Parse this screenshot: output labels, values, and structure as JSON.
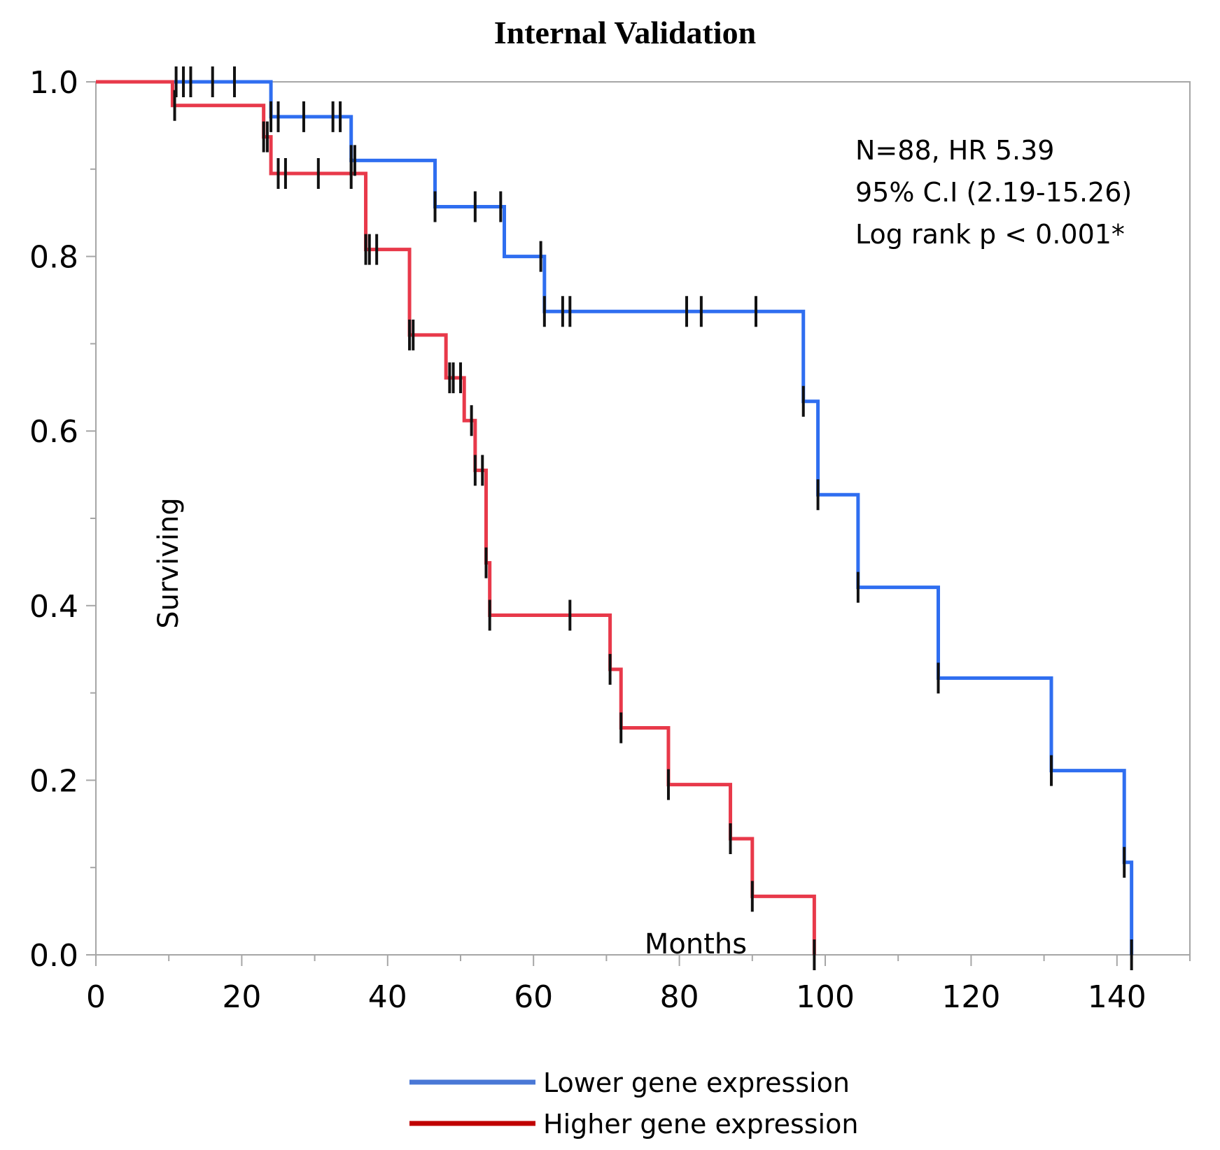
{
  "chart_data": {
    "type": "line",
    "title": "Internal Validation",
    "xlabel": "Months",
    "ylabel": "Surviving",
    "xlim": [
      0,
      150
    ],
    "ylim": [
      0,
      1.0
    ],
    "x_ticks": [
      0,
      20,
      40,
      60,
      80,
      100,
      120,
      140
    ],
    "y_ticks": [
      0.0,
      0.2,
      0.4,
      0.6,
      0.8,
      1.0
    ],
    "x_tick_labels": [
      "0",
      "20",
      "40",
      "60",
      "80",
      "100",
      "120",
      "140"
    ],
    "y_tick_labels": [
      "0.0",
      "0.2",
      "0.4",
      "0.6",
      "0.8",
      "1.0"
    ],
    "annotations": [
      "N=88, HR 5.39",
      "95% C.I (2.19-15.26)",
      "Log rank p < 0.001*"
    ],
    "series": [
      {
        "name": "Lower gene expression",
        "color": "#2f6ef0",
        "steps": [
          [
            0,
            1.0
          ],
          [
            24,
            0.96
          ],
          [
            35,
            0.91
          ],
          [
            46.5,
            0.857
          ],
          [
            56,
            0.8
          ],
          [
            61.5,
            0.737
          ],
          [
            97,
            0.634
          ],
          [
            99,
            0.527
          ],
          [
            104.5,
            0.421
          ],
          [
            115.5,
            0.317
          ],
          [
            131,
            0.211
          ],
          [
            141,
            0.106
          ],
          [
            142,
            0.0
          ]
        ],
        "censor_times": [
          11,
          12,
          13,
          16,
          19,
          24,
          25,
          28.5,
          32.5,
          33.5,
          35,
          35.5,
          46.5,
          52,
          55.5,
          61,
          61.5,
          64,
          65,
          81,
          83,
          90.5,
          97,
          99,
          104.5,
          115.5,
          131,
          141,
          142
        ]
      },
      {
        "name": "Higher gene expression",
        "color": "#e8394a",
        "steps": [
          [
            0,
            1.0
          ],
          [
            10.5,
            0.973
          ],
          [
            23,
            0.937
          ],
          [
            24,
            0.895
          ],
          [
            37,
            0.808
          ],
          [
            43,
            0.71
          ],
          [
            48,
            0.661
          ],
          [
            50.5,
            0.612
          ],
          [
            52,
            0.555
          ],
          [
            53.5,
            0.449
          ],
          [
            54,
            0.389
          ],
          [
            70.5,
            0.327
          ],
          [
            72,
            0.26
          ],
          [
            78.5,
            0.195
          ],
          [
            87,
            0.133
          ],
          [
            90,
            0.067
          ],
          [
            98.5,
            0.0
          ]
        ],
        "censor_times": [
          10.8,
          23,
          23.5,
          25,
          26,
          30.5,
          35,
          37,
          37.5,
          38.5,
          43,
          43.5,
          48.5,
          49,
          50,
          51.5,
          52,
          53,
          53.5,
          54,
          65,
          70.5,
          72,
          78.5,
          87,
          90,
          98.5
        ]
      }
    ],
    "legend": {
      "position": "bottom-center",
      "entries": [
        {
          "label": "Lower gene expression",
          "color": "#4a78d6"
        },
        {
          "label": "Higher gene expression",
          "color": "#c00000"
        }
      ]
    }
  }
}
